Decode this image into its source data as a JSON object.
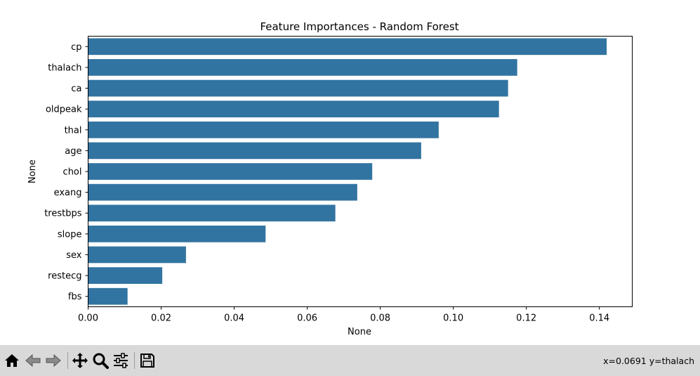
{
  "chart_data": {
    "type": "bar",
    "orientation": "horizontal",
    "title": "Feature Importances - Random Forest",
    "xlabel": "None",
    "ylabel": "None",
    "categories": [
      "cp",
      "thalach",
      "ca",
      "oldpeak",
      "thal",
      "age",
      "chol",
      "exang",
      "trestbps",
      "slope",
      "sex",
      "restecg",
      "fbs"
    ],
    "values": [
      0.142,
      0.1175,
      0.115,
      0.1125,
      0.096,
      0.0912,
      0.0778,
      0.0737,
      0.0677,
      0.0486,
      0.0268,
      0.0203,
      0.0108
    ],
    "xlim": [
      0.0,
      0.149
    ],
    "xticks": [
      0.0,
      0.02,
      0.04,
      0.06,
      0.08,
      0.1,
      0.12,
      0.14
    ],
    "xtick_labels": [
      "0.00",
      "0.02",
      "0.04",
      "0.06",
      "0.08",
      "0.10",
      "0.12",
      "0.14"
    ],
    "bar_color": "#3274a1",
    "grid": false
  },
  "toolbar": {
    "buttons": [
      {
        "name": "home-button",
        "icon": "home-icon"
      },
      {
        "name": "back-button",
        "icon": "back-arrow-icon"
      },
      {
        "name": "forward-button",
        "icon": "forward-arrow-icon"
      },
      {
        "name": "pan-button",
        "icon": "move-icon"
      },
      {
        "name": "zoom-button",
        "icon": "magnifier-icon"
      },
      {
        "name": "configure-subplots-button",
        "icon": "sliders-icon"
      },
      {
        "name": "save-button",
        "icon": "floppy-disk-icon"
      }
    ],
    "status_text": "x=0.0691 y=thalach"
  }
}
